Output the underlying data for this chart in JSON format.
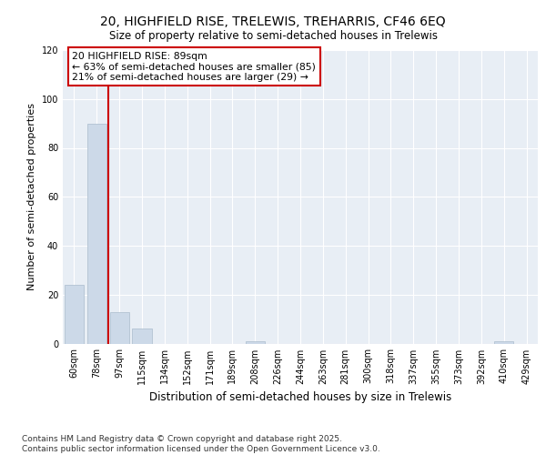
{
  "title1": "20, HIGHFIELD RISE, TRELEWIS, TREHARRIS, CF46 6EQ",
  "title2": "Size of property relative to semi-detached houses in Trelewis",
  "xlabel": "Distribution of semi-detached houses by size in Trelewis",
  "ylabel": "Number of semi-detached properties",
  "categories": [
    "60sqm",
    "78sqm",
    "97sqm",
    "115sqm",
    "134sqm",
    "152sqm",
    "171sqm",
    "189sqm",
    "208sqm",
    "226sqm",
    "244sqm",
    "263sqm",
    "281sqm",
    "300sqm",
    "318sqm",
    "337sqm",
    "355sqm",
    "373sqm",
    "392sqm",
    "410sqm",
    "429sqm"
  ],
  "values": [
    24,
    90,
    13,
    6,
    0,
    0,
    0,
    0,
    1,
    0,
    0,
    0,
    0,
    0,
    0,
    0,
    0,
    0,
    0,
    1,
    0
  ],
  "bar_color": "#ccd9e8",
  "bar_edge_color": "#aabccc",
  "vline_pos": 1.5,
  "vline_color": "#cc0000",
  "annotation_title": "20 HIGHFIELD RISE: 89sqm",
  "annotation_line2": "← 63% of semi-detached houses are smaller (85)",
  "annotation_line3": "21% of semi-detached houses are larger (29) →",
  "annotation_box_color": "#cc0000",
  "annotation_bg": "#ffffff",
  "ylim": [
    0,
    120
  ],
  "yticks": [
    0,
    20,
    40,
    60,
    80,
    100,
    120
  ],
  "footer": "Contains HM Land Registry data © Crown copyright and database right 2025.\nContains public sector information licensed under the Open Government Licence v3.0.",
  "bg_color": "#e8eef5",
  "grid_color": "#ffffff"
}
